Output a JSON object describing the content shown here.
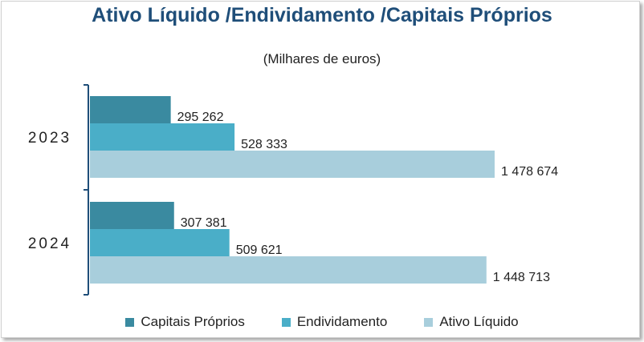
{
  "chart_data": {
    "type": "bar",
    "orientation": "horizontal",
    "title": "Ativo Líquido /Endividamento /Capitais Próprios",
    "subtitle": "(Milhares de euros)",
    "categories": [
      "2023",
      "2024"
    ],
    "series": [
      {
        "name": "Capitais Próprios",
        "color": "#3a8aa0",
        "values": [
          295262,
          307381
        ],
        "labels": [
          "295 262",
          "307 381"
        ]
      },
      {
        "name": "Endividamento",
        "color": "#4aaec8",
        "values": [
          528333,
          509621
        ],
        "labels": [
          "528 333",
          "509 621"
        ]
      },
      {
        "name": "Ativo Líquido",
        "color": "#a8cedc",
        "values": [
          1478674,
          1448713
        ],
        "labels": [
          "1 478 674",
          "1 448 713"
        ]
      }
    ],
    "xlim": [
      0,
      1478674
    ],
    "grid": false,
    "legend": "bottom"
  }
}
